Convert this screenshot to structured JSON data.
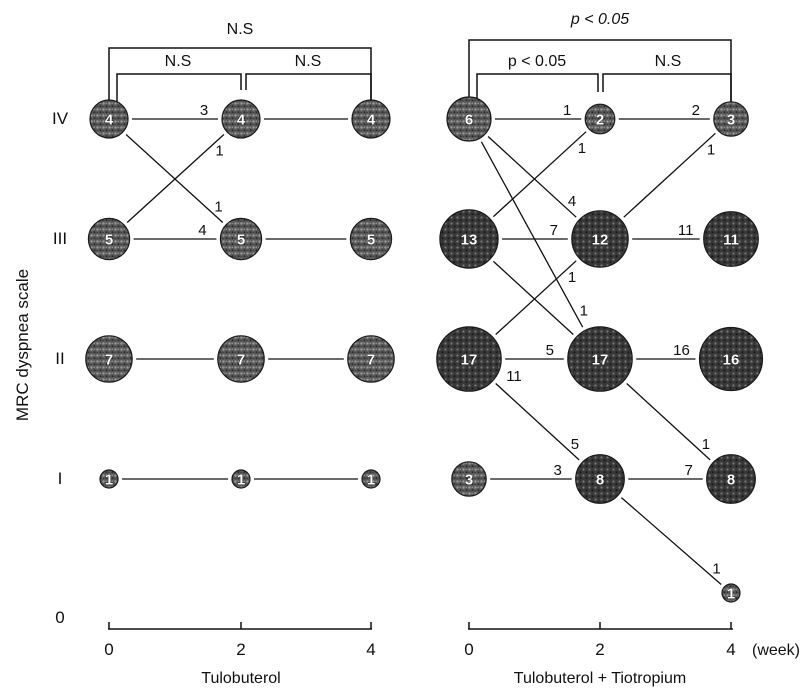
{
  "chart_data": {
    "type": "bubble",
    "ylabel": "MRC dyspnea scale",
    "y_levels": [
      "0",
      "I",
      "II",
      "III",
      "IV"
    ],
    "x_unit": "(week)",
    "panels": [
      {
        "id": "left",
        "xlabel": "Tulobuterol",
        "x_ticks": [
          "0",
          "2",
          "4"
        ],
        "significance": {
          "overall": "N.S",
          "first": "N.S",
          "second": "N.S"
        },
        "nodes": [
          {
            "week": 0,
            "level": "IV",
            "count": 4
          },
          {
            "week": 2,
            "level": "IV",
            "count": 4
          },
          {
            "week": 4,
            "level": "IV",
            "count": 4
          },
          {
            "week": 0,
            "level": "III",
            "count": 5
          },
          {
            "week": 2,
            "level": "III",
            "count": 5
          },
          {
            "week": 4,
            "level": "III",
            "count": 5
          },
          {
            "week": 0,
            "level": "II",
            "count": 7
          },
          {
            "week": 2,
            "level": "II",
            "count": 7
          },
          {
            "week": 4,
            "level": "II",
            "count": 7
          },
          {
            "week": 0,
            "level": "I",
            "count": 1
          },
          {
            "week": 2,
            "level": "I",
            "count": 1
          },
          {
            "week": 4,
            "level": "I",
            "count": 1
          }
        ],
        "transitions": [
          {
            "from_week": 0,
            "from": "IV",
            "to_week": 2,
            "to": "IV",
            "n": "3"
          },
          {
            "from_week": 0,
            "from": "IV",
            "to_week": 2,
            "to": "III",
            "n": "1"
          },
          {
            "from_week": 0,
            "from": "III",
            "to_week": 2,
            "to": "IV",
            "n": "1"
          },
          {
            "from_week": 0,
            "from": "III",
            "to_week": 2,
            "to": "III",
            "n": "4"
          },
          {
            "from_week": 2,
            "from": "IV",
            "to_week": 4,
            "to": "IV",
            "n": ""
          },
          {
            "from_week": 2,
            "from": "III",
            "to_week": 4,
            "to": "III",
            "n": ""
          },
          {
            "from_week": 0,
            "from": "II",
            "to_week": 2,
            "to": "II",
            "n": ""
          },
          {
            "from_week": 2,
            "from": "II",
            "to_week": 4,
            "to": "II",
            "n": ""
          },
          {
            "from_week": 0,
            "from": "I",
            "to_week": 2,
            "to": "I",
            "n": ""
          },
          {
            "from_week": 2,
            "from": "I",
            "to_week": 4,
            "to": "I",
            "n": ""
          }
        ]
      },
      {
        "id": "right",
        "xlabel": "Tulobuterol + Tiotropium",
        "x_ticks": [
          "0",
          "2",
          "4"
        ],
        "significance": {
          "overall": "p < 0.05",
          "first": "p < 0.05",
          "second": "N.S"
        },
        "nodes": [
          {
            "week": 0,
            "level": "IV",
            "count": 6
          },
          {
            "week": 2,
            "level": "IV",
            "count": 2
          },
          {
            "week": 4,
            "level": "IV",
            "count": 3
          },
          {
            "week": 0,
            "level": "III",
            "count": 13
          },
          {
            "week": 2,
            "level": "III",
            "count": 12
          },
          {
            "week": 4,
            "level": "III",
            "count": 11
          },
          {
            "week": 0,
            "level": "II",
            "count": 17
          },
          {
            "week": 2,
            "level": "II",
            "count": 17
          },
          {
            "week": 4,
            "level": "II",
            "count": 16
          },
          {
            "week": 0,
            "level": "I",
            "count": 3
          },
          {
            "week": 2,
            "level": "I",
            "count": 8
          },
          {
            "week": 4,
            "level": "I",
            "count": 8
          },
          {
            "week": 4,
            "level": "0",
            "count": 1
          }
        ],
        "transitions": [
          {
            "from_week": 0,
            "from": "IV",
            "to_week": 2,
            "to": "IV",
            "n": "1"
          },
          {
            "from_week": 0,
            "from": "IV",
            "to_week": 2,
            "to": "III",
            "n": "4"
          },
          {
            "from_week": 0,
            "from": "IV",
            "to_week": 2,
            "to": "II",
            "n": "1"
          },
          {
            "from_week": 0,
            "from": "III",
            "to_week": 2,
            "to": "IV",
            "n": "1"
          },
          {
            "from_week": 0,
            "from": "III",
            "to_week": 2,
            "to": "III",
            "n": "7"
          },
          {
            "from_week": 0,
            "from": "III",
            "to_week": 2,
            "to": "II",
            "n": ""
          },
          {
            "from_week": 0,
            "from": "II",
            "to_week": 2,
            "to": "III",
            "n": "1"
          },
          {
            "from_week": 0,
            "from": "II",
            "to_week": 2,
            "to": "II",
            "n": "5"
          },
          {
            "from_week": 0,
            "from": "II",
            "to_week": 2,
            "to": "I",
            "n": "5"
          },
          {
            "from_week": 0,
            "from": "I",
            "to_week": 2,
            "to": "I",
            "n": "3"
          },
          {
            "from_week": 2,
            "from": "IV",
            "to_week": 4,
            "to": "IV",
            "n": "2"
          },
          {
            "from_week": 2,
            "from": "III",
            "to_week": 4,
            "to": "IV",
            "n": "1"
          },
          {
            "from_week": 2,
            "from": "III",
            "to_week": 4,
            "to": "III",
            "n": "11"
          },
          {
            "from_week": 2,
            "from": "II",
            "to_week": 4,
            "to": "II",
            "n": "16"
          },
          {
            "from_week": 2,
            "from": "II",
            "to_week": 4,
            "to": "I",
            "n": "1"
          },
          {
            "from_week": 2,
            "from": "I",
            "to_week": 4,
            "to": "I",
            "n": "7"
          },
          {
            "from_week": 2,
            "from": "I",
            "to_week": 4,
            "to": "0",
            "n": "1"
          }
        ],
        "extra_count_labels": [
          "11"
        ]
      }
    ]
  }
}
